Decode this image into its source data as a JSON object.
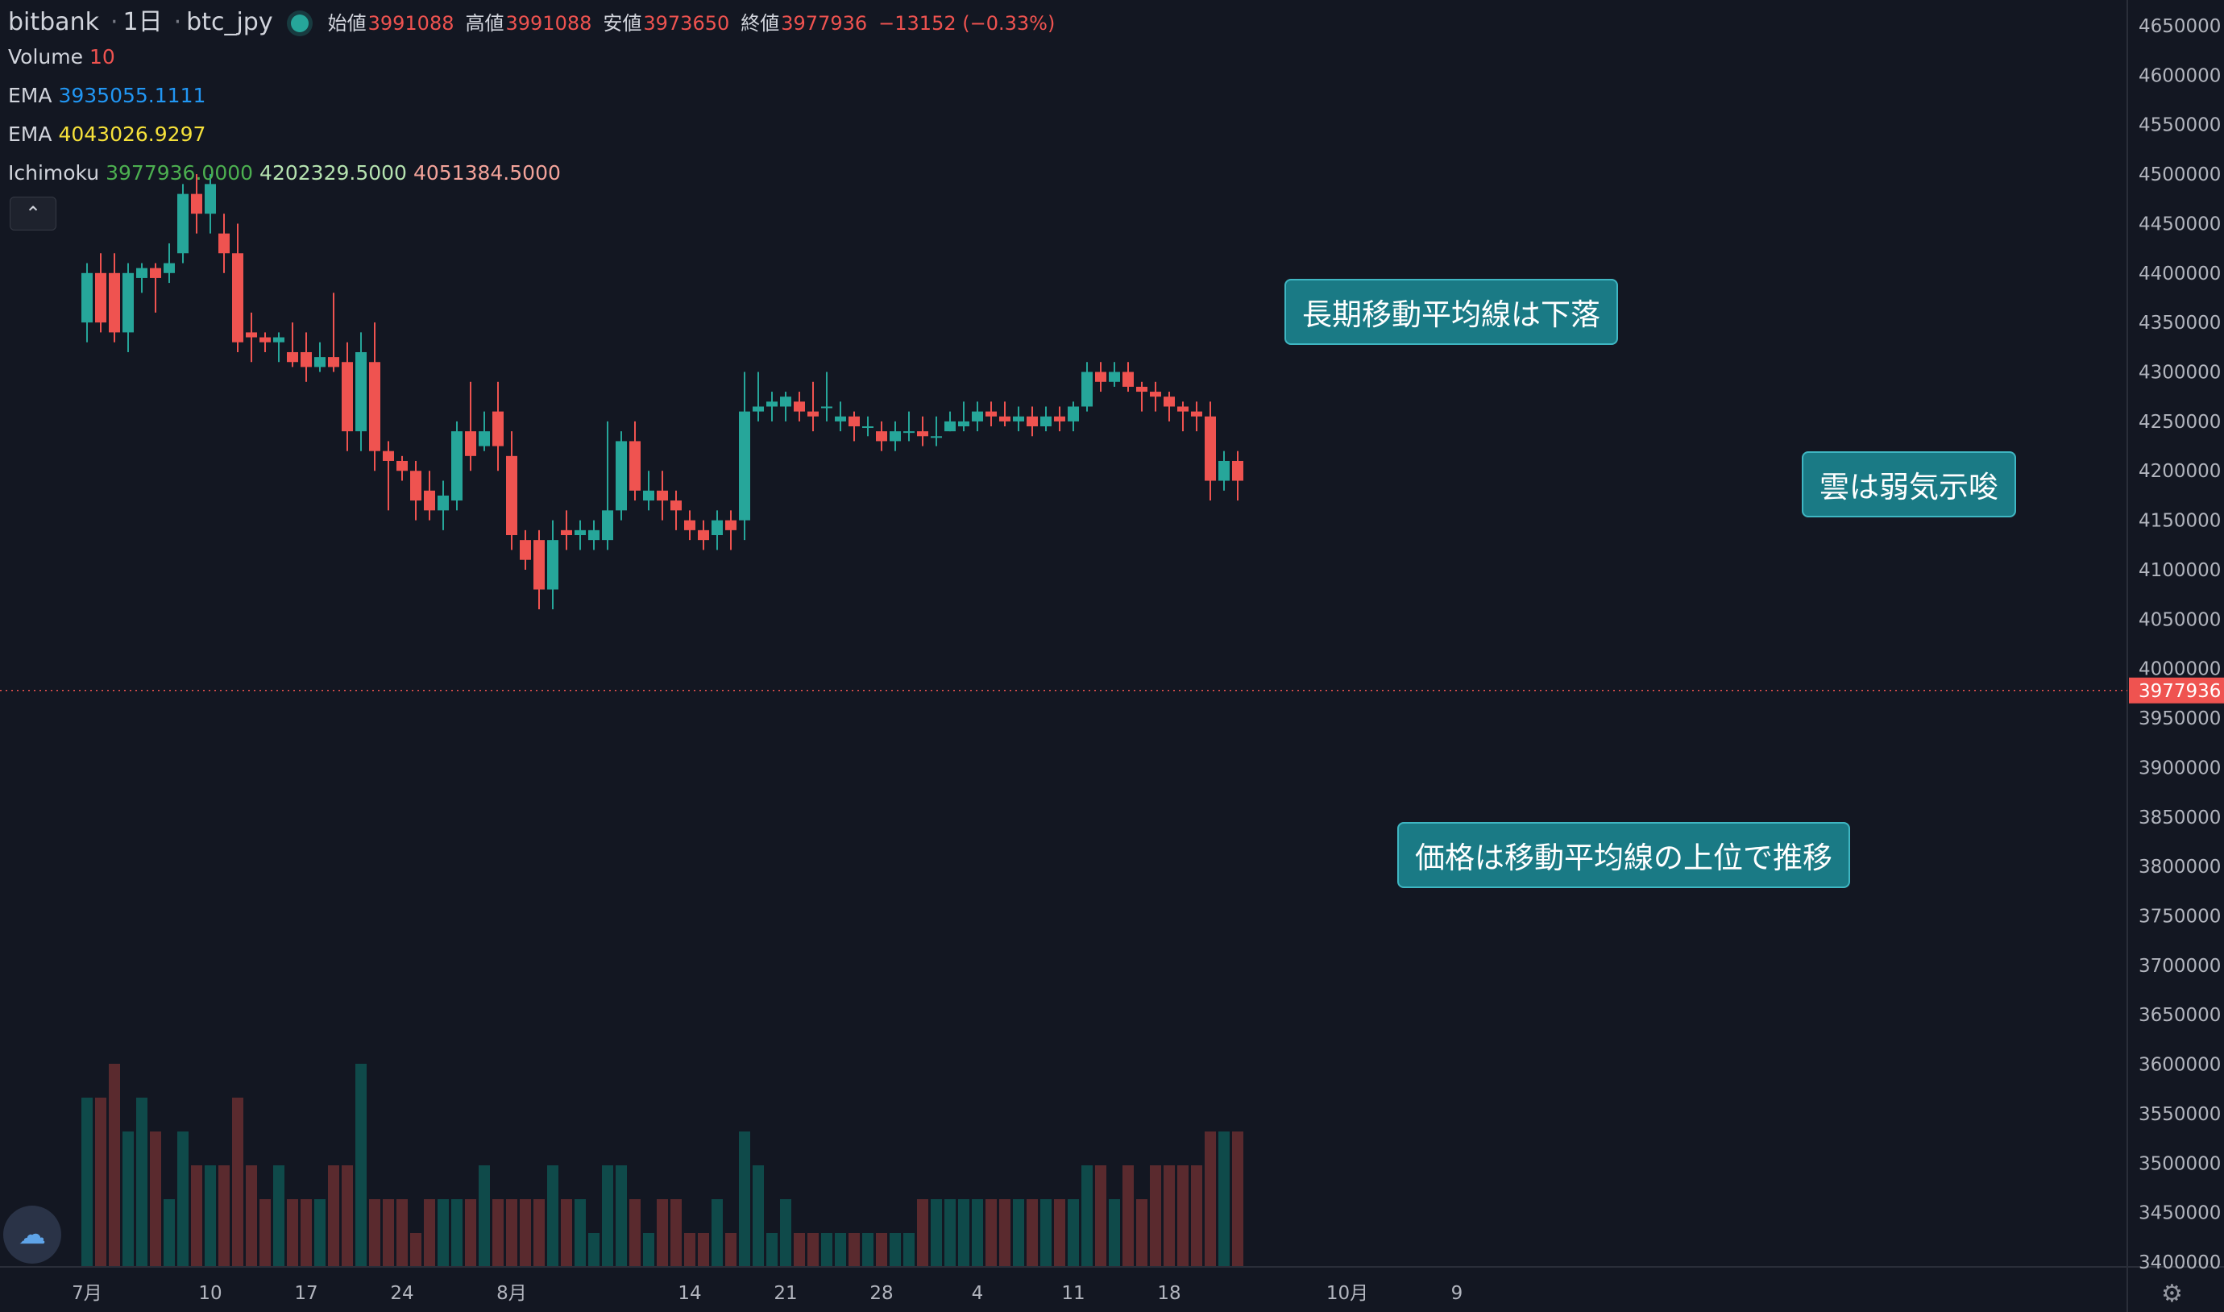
{
  "header": {
    "exchange": "bitbank",
    "interval": "1日",
    "symbol": "btc_jpy",
    "open_label": "始値",
    "open": "3991088",
    "high_label": "高値",
    "high": "3991088",
    "low_label": "安値",
    "low": "3973650",
    "close_label": "終値",
    "close": "3977936",
    "change": "−13152 (−0.33%)"
  },
  "indicators": {
    "volume": {
      "name": "Volume",
      "value": "10",
      "color": "#ef5350"
    },
    "ema_fast": {
      "name": "EMA",
      "value": "3935055.1111",
      "color": "#2196f3"
    },
    "ema_slow": {
      "name": "EMA",
      "value": "4043026.9297",
      "color": "#f6e13a"
    },
    "ichimoku": {
      "name": "Ichimoku",
      "v1": "3977936.0000",
      "v2": "4202329.5000",
      "v3": "4051384.5000",
      "c1": "#4caf50",
      "c2": "#b5e3b0",
      "c3": "#f3a39a"
    }
  },
  "callouts": {
    "long_ma": "長期移動平均線は下落",
    "cloud": "雲は弱気示唆",
    "price": "価格は移動平均線の上位で推移"
  },
  "price_tag": "3977936",
  "colors": {
    "background": "#131722",
    "up": "#26a69a",
    "down": "#ef5350"
  },
  "icons": {
    "logo": "tradingview-logo-icon",
    "settings": "gear-icon",
    "collapse": "chevron-up-icon"
  },
  "chart_data": {
    "type": "candlestick",
    "y_ticks": [
      4650000,
      4600000,
      4550000,
      4500000,
      4450000,
      4400000,
      4350000,
      4300000,
      4250000,
      4200000,
      4150000,
      4100000,
      4050000,
      4000000,
      3950000,
      3900000,
      3850000,
      3800000,
      3750000,
      3700000,
      3650000,
      3600000,
      3550000,
      3500000,
      3450000,
      3400000
    ],
    "ylim": [
      3400000,
      4650000
    ],
    "x_labels": [
      "7月",
      "10",
      "17",
      "24",
      "8月",
      "14",
      "21",
      "28",
      "4",
      "11",
      "18",
      "10月",
      "9"
    ],
    "x_label_days": [
      1,
      10,
      17,
      24,
      32,
      45,
      52,
      59,
      66,
      73,
      80,
      93,
      101
    ],
    "candles": [
      [
        1,
        4350000,
        4400000,
        4330000,
        4410000,
        5
      ],
      [
        2,
        4400000,
        4350000,
        4340000,
        4420000,
        5
      ],
      [
        3,
        4400000,
        4340000,
        4330000,
        4420000,
        6
      ],
      [
        4,
        4340000,
        4400000,
        4320000,
        4410000,
        4
      ],
      [
        5,
        4395000,
        4405000,
        4380000,
        4410000,
        5
      ],
      [
        6,
        4405000,
        4395000,
        4360000,
        4410000,
        4
      ],
      [
        7,
        4400000,
        4410000,
        4390000,
        4430000,
        2
      ],
      [
        8,
        4420000,
        4480000,
        4410000,
        4490000,
        4
      ],
      [
        9,
        4480000,
        4460000,
        4440000,
        4500000,
        3
      ],
      [
        10,
        4460000,
        4490000,
        4440000,
        4500000,
        3
      ],
      [
        11,
        4440000,
        4420000,
        4400000,
        4460000,
        3
      ],
      [
        12,
        4420000,
        4330000,
        4320000,
        4450000,
        5
      ],
      [
        13,
        4340000,
        4335000,
        4310000,
        4360000,
        3
      ],
      [
        14,
        4335000,
        4330000,
        4320000,
        4340000,
        2
      ],
      [
        15,
        4330000,
        4335000,
        4310000,
        4340000,
        3
      ],
      [
        16,
        4320000,
        4310000,
        4305000,
        4350000,
        2
      ],
      [
        17,
        4320000,
        4305000,
        4290000,
        4340000,
        2
      ],
      [
        18,
        4305000,
        4315000,
        4300000,
        4330000,
        2
      ],
      [
        19,
        4315000,
        4305000,
        4300000,
        4380000,
        3
      ],
      [
        20,
        4310000,
        4240000,
        4220000,
        4330000,
        3
      ],
      [
        21,
        4240000,
        4320000,
        4220000,
        4340000,
        6
      ],
      [
        22,
        4310000,
        4220000,
        4200000,
        4350000,
        2
      ],
      [
        23,
        4220000,
        4210000,
        4160000,
        4230000,
        2
      ],
      [
        24,
        4210000,
        4200000,
        4190000,
        4215000,
        2
      ],
      [
        25,
        4200000,
        4170000,
        4150000,
        4210000,
        1
      ],
      [
        26,
        4180000,
        4160000,
        4150000,
        4200000,
        2
      ],
      [
        27,
        4160000,
        4175000,
        4140000,
        4190000,
        2
      ],
      [
        28,
        4170000,
        4240000,
        4160000,
        4250000,
        2
      ],
      [
        29,
        4240000,
        4215000,
        4200000,
        4290000,
        2
      ],
      [
        30,
        4225000,
        4240000,
        4220000,
        4260000,
        3
      ],
      [
        31,
        4260000,
        4225000,
        4200000,
        4290000,
        2
      ],
      [
        32,
        4215000,
        4135000,
        4120000,
        4240000,
        2
      ],
      [
        33,
        4130000,
        4110000,
        4100000,
        4140000,
        2
      ],
      [
        34,
        4130000,
        4080000,
        4060000,
        4140000,
        2
      ],
      [
        35,
        4080000,
        4130000,
        4060000,
        4150000,
        3
      ],
      [
        36,
        4140000,
        4135000,
        4120000,
        4160000,
        2
      ],
      [
        37,
        4135000,
        4140000,
        4120000,
        4150000,
        2
      ],
      [
        38,
        4130000,
        4140000,
        4120000,
        4150000,
        1
      ],
      [
        39,
        4130000,
        4160000,
        4120000,
        4250000,
        3
      ],
      [
        40,
        4160000,
        4230000,
        4150000,
        4240000,
        3
      ],
      [
        41,
        4230000,
        4180000,
        4170000,
        4250000,
        2
      ],
      [
        42,
        4170000,
        4180000,
        4160000,
        4200000,
        1
      ],
      [
        43,
        4180000,
        4170000,
        4150000,
        4200000,
        2
      ],
      [
        44,
        4170000,
        4160000,
        4140000,
        4180000,
        2
      ],
      [
        45,
        4150000,
        4140000,
        4130000,
        4160000,
        1
      ],
      [
        46,
        4140000,
        4130000,
        4120000,
        4150000,
        1
      ],
      [
        47,
        4135000,
        4150000,
        4120000,
        4160000,
        2
      ],
      [
        48,
        4150000,
        4140000,
        4120000,
        4160000,
        1
      ],
      [
        49,
        4150000,
        4260000,
        4130000,
        4300000,
        4
      ],
      [
        50,
        4260000,
        4265000,
        4250000,
        4300000,
        3
      ],
      [
        51,
        4265000,
        4270000,
        4250000,
        4280000,
        1
      ],
      [
        52,
        4265000,
        4275000,
        4250000,
        4280000,
        2
      ],
      [
        53,
        4270000,
        4260000,
        4250000,
        4280000,
        1
      ],
      [
        54,
        4260000,
        4255000,
        4240000,
        4290000,
        1
      ],
      [
        55,
        4265000,
        4265000,
        4250000,
        4300000,
        1
      ],
      [
        56,
        4250000,
        4255000,
        4240000,
        4270000,
        1
      ],
      [
        57,
        4255000,
        4245000,
        4230000,
        4260000,
        1
      ],
      [
        58,
        4245000,
        4245000,
        4235000,
        4255000,
        1
      ],
      [
        59,
        4240000,
        4230000,
        4220000,
        4250000,
        1
      ],
      [
        60,
        4230000,
        4240000,
        4220000,
        4250000,
        1
      ],
      [
        61,
        4240000,
        4240000,
        4230000,
        4260000,
        1
      ],
      [
        62,
        4240000,
        4235000,
        4225000,
        4255000,
        2
      ],
      [
        63,
        4235000,
        4235000,
        4225000,
        4255000,
        2
      ],
      [
        64,
        4240000,
        4250000,
        4240000,
        4260000,
        2
      ],
      [
        65,
        4245000,
        4250000,
        4240000,
        4270000,
        2
      ],
      [
        66,
        4250000,
        4260000,
        4240000,
        4270000,
        2
      ],
      [
        67,
        4260000,
        4255000,
        4245000,
        4270000,
        2
      ],
      [
        68,
        4255000,
        4250000,
        4245000,
        4270000,
        2
      ],
      [
        69,
        4250000,
        4255000,
        4240000,
        4265000,
        2
      ],
      [
        70,
        4255000,
        4245000,
        4235000,
        4265000,
        2
      ],
      [
        71,
        4245000,
        4255000,
        4240000,
        4265000,
        2
      ],
      [
        72,
        4255000,
        4250000,
        4240000,
        4265000,
        2
      ],
      [
        73,
        4250000,
        4265000,
        4240000,
        4270000,
        2
      ],
      [
        74,
        4265000,
        4300000,
        4260000,
        4310000,
        3
      ],
      [
        75,
        4300000,
        4290000,
        4280000,
        4310000,
        3
      ],
      [
        76,
        4290000,
        4300000,
        4285000,
        4310000,
        2
      ],
      [
        77,
        4300000,
        4285000,
        4280000,
        4310000,
        3
      ],
      [
        78,
        4285000,
        4280000,
        4260000,
        4290000,
        2
      ],
      [
        79,
        4280000,
        4275000,
        4260000,
        4290000,
        3
      ],
      [
        80,
        4275000,
        4265000,
        4250000,
        4280000,
        3
      ],
      [
        81,
        4265000,
        4260000,
        4240000,
        4270000,
        3
      ],
      [
        82,
        4260000,
        4255000,
        4240000,
        4270000,
        3
      ],
      [
        83,
        4255000,
        4190000,
        4170000,
        4270000,
        4
      ],
      [
        84,
        4190000,
        4210000,
        4180000,
        4220000,
        4
      ],
      [
        85,
        4210000,
        4190000,
        4170000,
        4220000,
        4
      ]
    ],
    "series_note": "candles: [day, open, close, low, high, volume_rel]"
  }
}
